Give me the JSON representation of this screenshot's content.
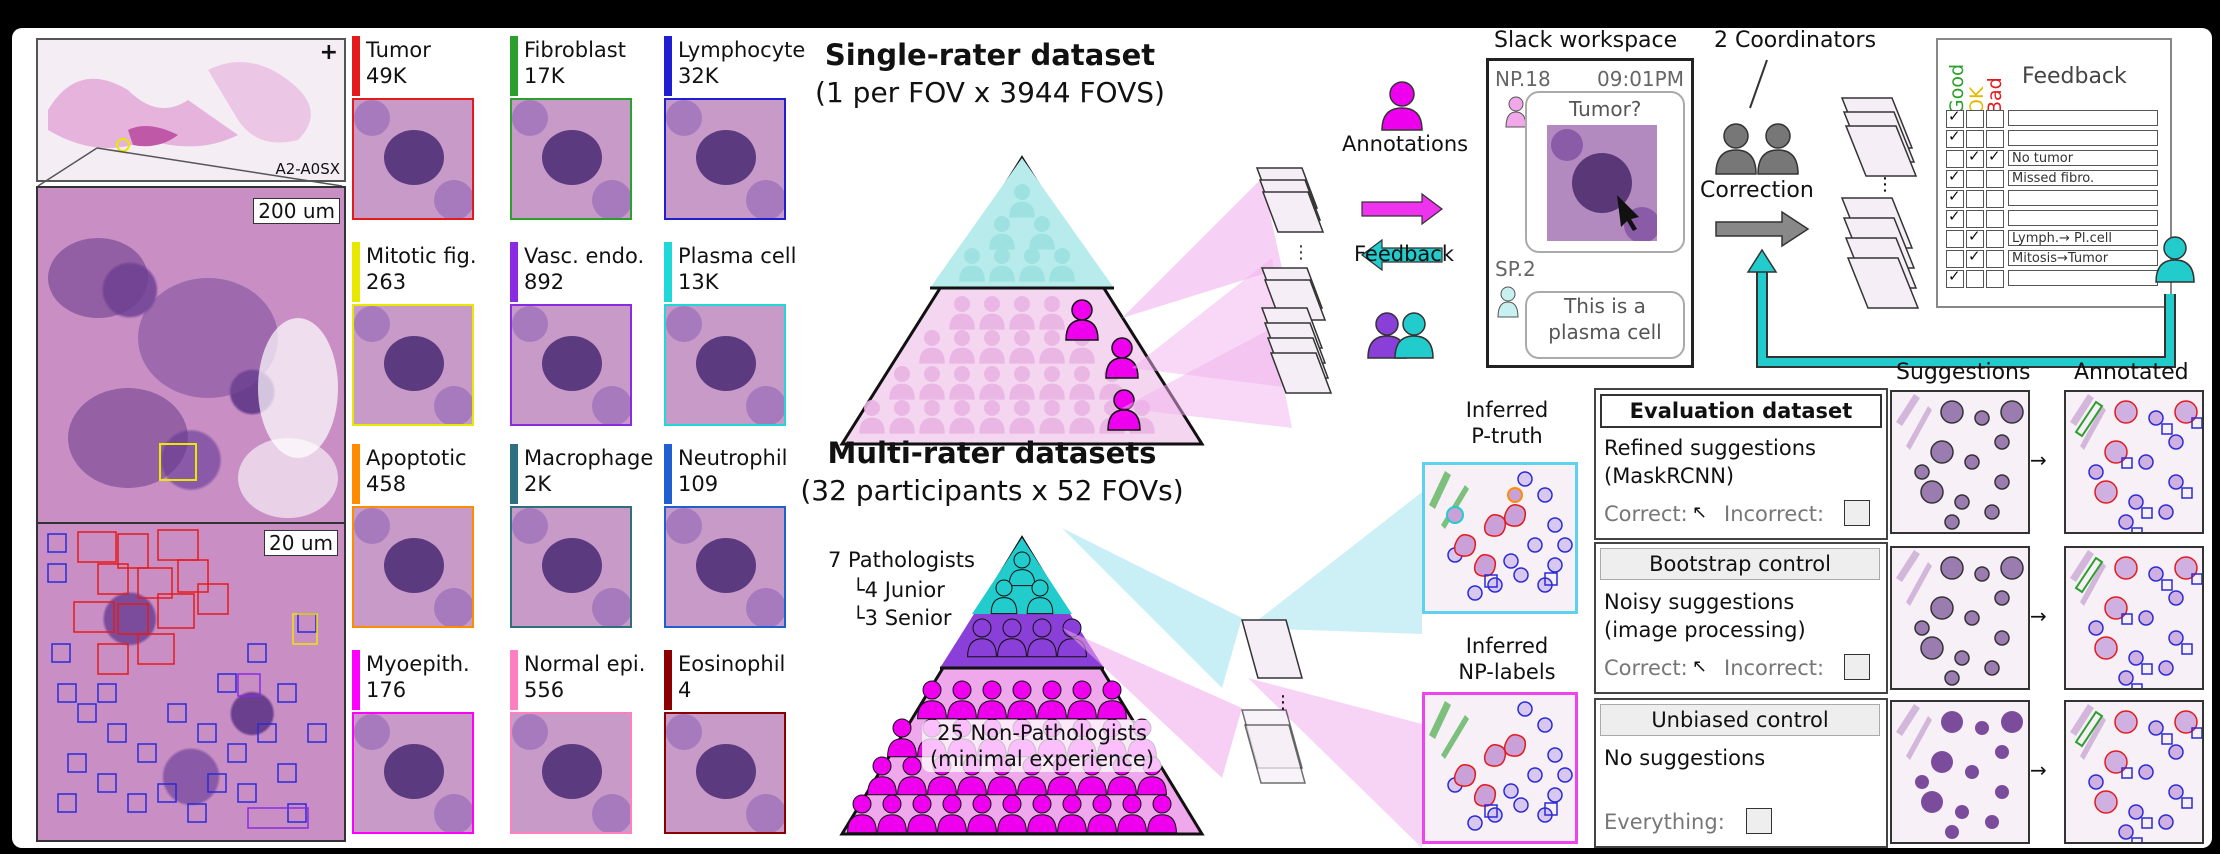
{
  "wsi": {
    "slide_id": "A2-A0SX",
    "scale_200": "200 um",
    "scale_20": "20 um"
  },
  "cell_types": [
    {
      "name": "Tumor",
      "count": "49K",
      "color": "#e41a1c"
    },
    {
      "name": "Fibroblast",
      "count": "17K",
      "color": "#2ca02c"
    },
    {
      "name": "Lymphocyte",
      "count": "32K",
      "color": "#1f1fd0"
    },
    {
      "name": "Mitotic fig.",
      "count": "263",
      "color": "#e8e800"
    },
    {
      "name": "Vasc. endo.",
      "count": "892",
      "color": "#8a2be2"
    },
    {
      "name": "Plasma cell",
      "count": "13K",
      "color": "#20d8d8"
    },
    {
      "name": "Apoptotic",
      "count": "458",
      "color": "#ff8c00"
    },
    {
      "name": "Macrophage",
      "count": "2K",
      "color": "#2f6f80"
    },
    {
      "name": "Neutrophil",
      "count": "109",
      "color": "#1f5fd0"
    },
    {
      "name": "Myoepith.",
      "count": "176",
      "color": "#ff00ff"
    },
    {
      "name": "Normal epi.",
      "count": "556",
      "color": "#ff80c0"
    },
    {
      "name": "Eosinophil",
      "count": "4",
      "color": "#8b0000"
    }
  ],
  "single_rater": {
    "title": "Single-rater dataset",
    "subtitle": "(1 per FOV x 3944 FOVS)"
  },
  "multi_rater": {
    "title": "Multi-rater datasets",
    "subtitle": "(32 participants x 52 FOVs)",
    "pathologists": "7 Pathologists",
    "junior": "4 Junior",
    "senior": "3 Senior",
    "nonpath_line1": "25 Non-Pathologists",
    "nonpath_line2": "(minimal experience)"
  },
  "flow": {
    "annotations": "Annotations",
    "feedback": "Feedback",
    "correction": "Correction",
    "coordinators": "2 Coordinators"
  },
  "slack": {
    "title": "Slack workspace",
    "user1": "NP.18",
    "time": "09:01PM",
    "msg1": "Tumor?",
    "user2": "SP.2",
    "msg2_line1": "This is a",
    "msg2_line2": "plasma cell"
  },
  "feedback_form": {
    "good": "Good",
    "ok": "OK",
    "bad": "Bad",
    "title": "Feedback",
    "notes": [
      "",
      "",
      "No tumor",
      "Missed fibro.",
      "",
      "",
      "Lymph.→ Pl.cell",
      "Mitosis→Tumor",
      ""
    ]
  },
  "inferred": {
    "p_truth_1": "Inferred",
    "p_truth_2": "P-truth",
    "np_1": "Inferred",
    "np_2": "NP-labels"
  },
  "columns": {
    "suggestions": "Suggestions",
    "annotated": "Annotated"
  },
  "eval": {
    "title": "Evaluation dataset",
    "line1": "Refined suggestions",
    "line2": "(MaskRCNN)",
    "correct": "Correct:",
    "incorrect": "Incorrect:"
  },
  "bootstrap": {
    "title": "Bootstrap control",
    "line1": "Noisy suggestions",
    "line2": "(image processing)",
    "correct": "Correct:",
    "incorrect": "Incorrect:"
  },
  "unbiased": {
    "title": "Unbiased control",
    "line1": "No suggestions",
    "everything": "Everything:"
  }
}
